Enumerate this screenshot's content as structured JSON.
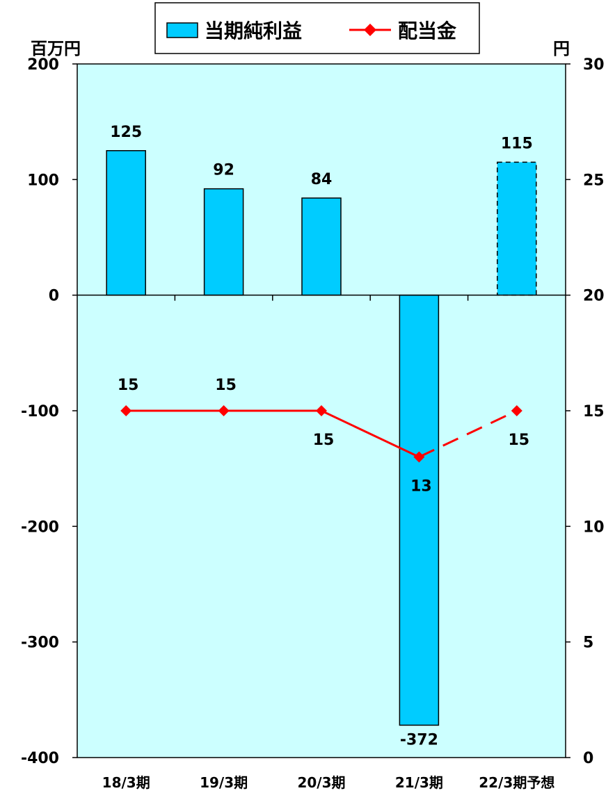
{
  "chart_data": {
    "type": "bar-line-combo",
    "categories": [
      "18/3期",
      "19/3期",
      "20/3期",
      "21/3期",
      "22/3期予想"
    ],
    "forecast_index": 4,
    "left_axis": {
      "unit": "百万円",
      "min": -400,
      "max": 200,
      "ticks": [
        200,
        100,
        0,
        -100,
        -200,
        -300,
        -400
      ],
      "tick_labels": [
        "200",
        "100",
        "0",
        "-100",
        "-200",
        "-300",
        "-400"
      ]
    },
    "right_axis": {
      "unit": "円",
      "min": 0,
      "max": 30,
      "ticks": [
        30,
        25,
        20,
        15,
        10,
        5,
        0
      ],
      "tick_labels": [
        "30",
        "25",
        "20",
        "15",
        "10",
        "5",
        "0"
      ]
    },
    "series": [
      {
        "name": "当期純利益",
        "type": "bar",
        "axis": "left",
        "values": [
          125,
          92,
          84,
          -372,
          115
        ],
        "labels": [
          "125",
          "92",
          "84",
          "-372",
          "115"
        ],
        "color": "#00ccff"
      },
      {
        "name": "配当金",
        "type": "line",
        "axis": "right",
        "values": [
          15,
          15,
          15,
          13,
          15
        ],
        "labels": [
          "15",
          "15",
          "15",
          "13",
          "15"
        ],
        "label_positions": [
          "above",
          "above",
          "below",
          "below",
          "below"
        ],
        "color": "#ff0000"
      }
    ],
    "plot_background": "#ccffff",
    "legend": {
      "position": "top-center"
    },
    "grid": false
  }
}
